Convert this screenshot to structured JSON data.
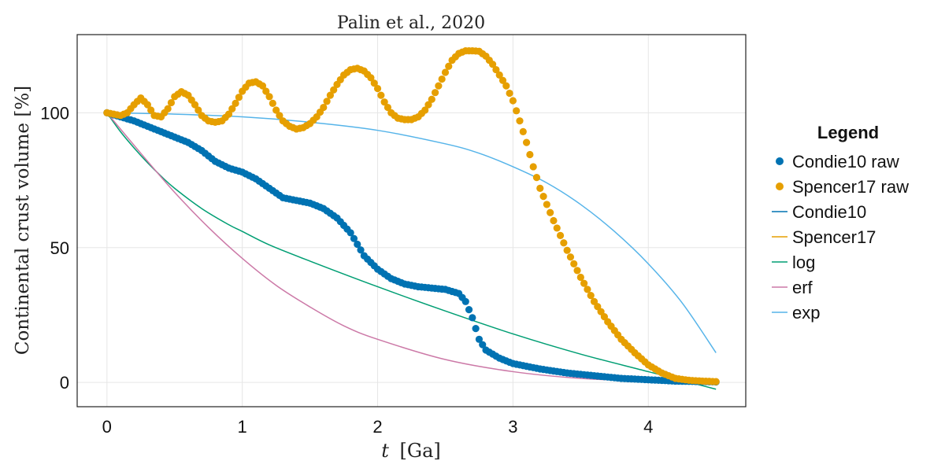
{
  "chart_data": {
    "type": "scatter",
    "title": "Palin et al., 2020",
    "xlabel_symbol": "t",
    "xlabel_unit": "[Ga]",
    "ylabel": "Continental crust volume [%]",
    "xlim": [
      -0.22,
      4.72
    ],
    "ylim": [
      -9,
      129
    ],
    "xticks": [
      "0",
      "1",
      "2",
      "3",
      "4"
    ],
    "yticks": [
      "0",
      "50",
      "100"
    ],
    "grid": true,
    "legend": {
      "title": "Legend",
      "placement": "right",
      "entries": [
        {
          "label": "Condie10 raw",
          "kind": "marker",
          "color": "#0072B2"
        },
        {
          "label": "Spencer17 raw",
          "kind": "marker",
          "color": "#E69F00"
        },
        {
          "label": "Condie10",
          "kind": "line",
          "color": "#0072B2"
        },
        {
          "label": "Spencer17",
          "kind": "line",
          "color": "#E69F00"
        },
        {
          "label": "log",
          "kind": "line",
          "color": "#009E73"
        },
        {
          "label": "erf",
          "kind": "line",
          "color": "#CC79A7"
        },
        {
          "label": "exp",
          "kind": "line",
          "color": "#56B4E9"
        }
      ]
    },
    "series": [
      {
        "name": "Condie10 raw",
        "kind": "scatter",
        "color": "#0072B2",
        "point_step": 0.025,
        "x": [
          0,
          0.1,
          0.2,
          0.3,
          0.4,
          0.5,
          0.6,
          0.7,
          0.8,
          0.9,
          1.0,
          1.1,
          1.2,
          1.3,
          1.4,
          1.5,
          1.6,
          1.7,
          1.8,
          1.9,
          2.0,
          2.1,
          2.2,
          2.3,
          2.4,
          2.5,
          2.6,
          2.65,
          2.7,
          2.75,
          2.8,
          2.9,
          3.0,
          3.2,
          3.4,
          3.6,
          3.8,
          4.0,
          4.2,
          4.4,
          4.5
        ],
        "y": [
          100,
          98.5,
          97,
          95,
          93,
          91,
          89,
          86,
          82,
          79.5,
          78,
          75.5,
          72,
          68.5,
          67.5,
          66.5,
          64.5,
          61,
          55.5,
          47,
          42,
          38.5,
          36.5,
          35.5,
          35,
          34.5,
          33,
          30,
          24,
          16,
          12,
          9,
          7,
          5,
          3.5,
          2.5,
          1.5,
          1,
          0.5,
          0.3,
          0.2
        ]
      },
      {
        "name": "Spencer17 raw",
        "kind": "scatter",
        "color": "#E69F00",
        "point_step": 0.025,
        "x": [
          0,
          0.05,
          0.1,
          0.15,
          0.2,
          0.25,
          0.3,
          0.35,
          0.4,
          0.45,
          0.5,
          0.55,
          0.6,
          0.65,
          0.7,
          0.75,
          0.8,
          0.85,
          0.9,
          0.95,
          1.0,
          1.05,
          1.1,
          1.15,
          1.2,
          1.25,
          1.3,
          1.35,
          1.4,
          1.45,
          1.5,
          1.55,
          1.6,
          1.65,
          1.7,
          1.75,
          1.8,
          1.85,
          1.9,
          1.95,
          2.0,
          2.05,
          2.1,
          2.15,
          2.2,
          2.25,
          2.3,
          2.35,
          2.4,
          2.45,
          2.5,
          2.55,
          2.6,
          2.65,
          2.7,
          2.75,
          2.8,
          2.85,
          2.9,
          2.95,
          3.0,
          3.05,
          3.1,
          3.15,
          3.2,
          3.3,
          3.4,
          3.5,
          3.6,
          3.7,
          3.8,
          3.9,
          4.0,
          4.1,
          4.2,
          4.3,
          4.4,
          4.5
        ],
        "y": [
          100,
          99.5,
          99,
          100,
          103,
          105.5,
          103,
          99,
          98.5,
          101.5,
          106,
          107.8,
          106.5,
          103,
          99,
          97,
          96.5,
          97,
          99.5,
          103.5,
          108,
          111,
          111.5,
          110,
          106,
          101,
          97,
          95,
          94,
          94.5,
          96,
          98.5,
          102,
          106.5,
          110.5,
          114,
          116,
          116.5,
          115.5,
          113,
          109,
          104,
          100,
          98,
          97.5,
          97.5,
          98.5,
          101,
          105,
          110,
          115,
          119.5,
          122,
          123,
          123,
          122.8,
          121,
          118,
          114,
          110,
          104.5,
          97,
          89,
          80,
          72,
          60,
          49,
          39,
          30,
          22.5,
          16,
          11,
          6.5,
          3.5,
          1.5,
          0.8,
          0.5,
          0.3
        ]
      },
      {
        "name": "log",
        "kind": "line",
        "color": "#009E73",
        "x": [
          0,
          0.1,
          0.2,
          0.3,
          0.4,
          0.5,
          0.7,
          0.9,
          1.0,
          1.2,
          1.5,
          2.0,
          2.5,
          3.0,
          3.5,
          4.0,
          4.5
        ],
        "y": [
          100,
          93,
          87,
          81.5,
          76.5,
          72,
          64.5,
          58.5,
          56,
          51,
          45,
          35.5,
          26.5,
          18,
          10.5,
          4,
          -2.5
        ]
      },
      {
        "name": "erf",
        "kind": "line",
        "color": "#CC79A7",
        "x": [
          0,
          0.25,
          0.5,
          0.75,
          1.0,
          1.25,
          1.5,
          1.75,
          2.0,
          2.5,
          3.0,
          3.5,
          4.0,
          4.5
        ],
        "y": [
          100,
          85,
          70.5,
          57.5,
          46,
          36,
          28,
          21,
          16,
          8.5,
          4,
          1.5,
          0.5,
          0.2
        ]
      },
      {
        "name": "exp",
        "kind": "line",
        "color": "#56B4E9",
        "x": [
          0,
          0.5,
          1.0,
          1.5,
          2.0,
          2.5,
          2.75,
          3.0,
          3.25,
          3.5,
          3.75,
          4.0,
          4.25,
          4.5
        ],
        "y": [
          100,
          99.5,
          98.5,
          96.5,
          93.5,
          88.5,
          85,
          80,
          74,
          66,
          56,
          44,
          29.5,
          11
        ]
      }
    ]
  }
}
